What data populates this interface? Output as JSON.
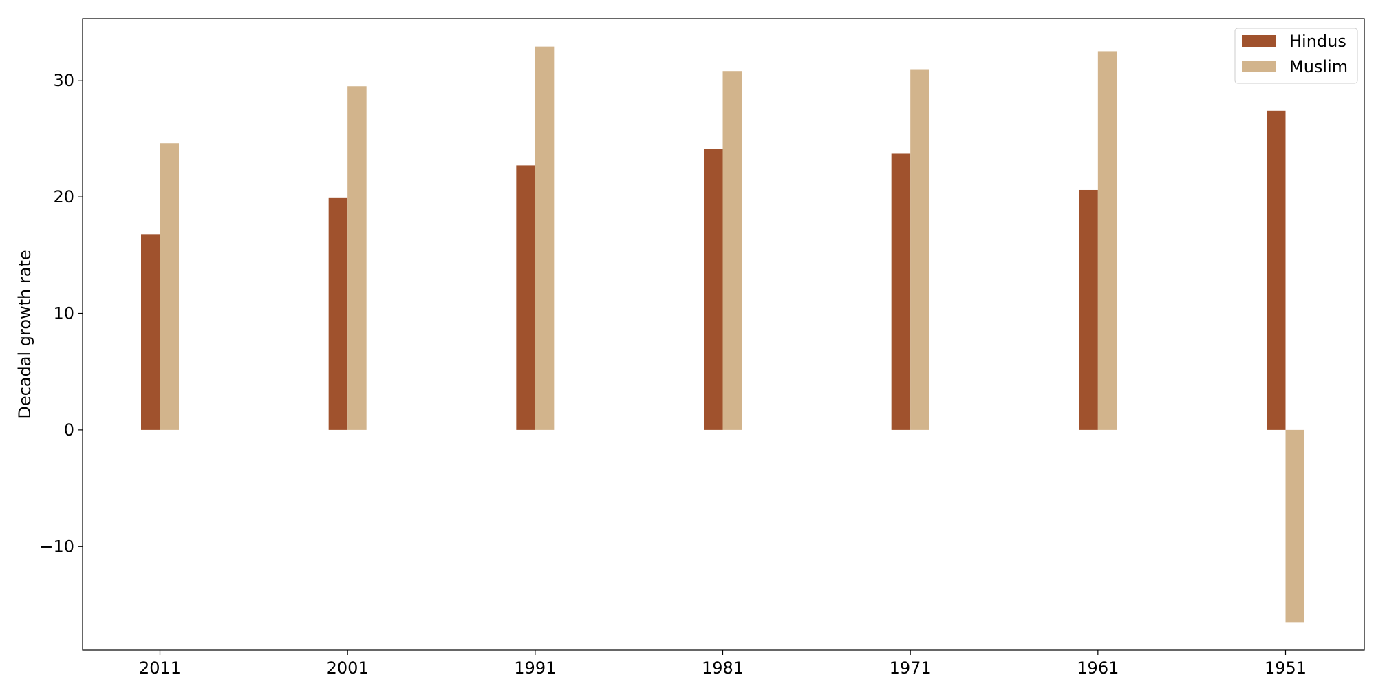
{
  "chart_data": {
    "type": "bar",
    "title": "",
    "xlabel": "",
    "ylabel": "Decadal growth rate",
    "categories": [
      "2011",
      "2001",
      "1991",
      "1981",
      "1971",
      "1961",
      "1951"
    ],
    "series": [
      {
        "name": "Hindus",
        "color": "#a0522d",
        "values": [
          16.8,
          19.9,
          22.7,
          24.1,
          23.7,
          20.6,
          27.4
        ]
      },
      {
        "name": "Muslim",
        "color": "#d2b48c",
        "values": [
          24.6,
          29.5,
          32.9,
          30.8,
          30.9,
          32.5,
          -16.5
        ]
      }
    ],
    "ylim": [
      -18.9,
      35.3
    ],
    "yticks": [
      -10,
      0,
      10,
      20,
      30
    ],
    "ytick_labels": [
      "−10",
      "0",
      "10",
      "20",
      "30"
    ],
    "grid": false,
    "legend_position": "top-right"
  }
}
